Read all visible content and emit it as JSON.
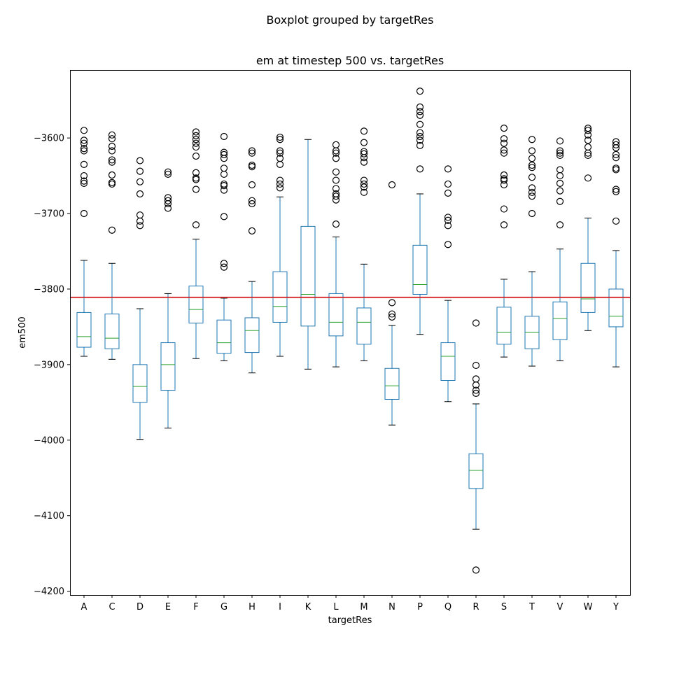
{
  "chart_data": {
    "type": "boxplot",
    "suptitle": "Boxplot grouped by targetRes",
    "title": "em at timestep 500 vs. targetRes",
    "xlabel": "targetRes",
    "ylabel": "em500",
    "ylim": [
      -4205,
      -3510
    ],
    "yticks": [
      -3600,
      -3700,
      -3800,
      -3900,
      -4000,
      -4100,
      -4200
    ],
    "ytick_labels": [
      "−3600",
      "−3700",
      "−3800",
      "−3900",
      "−4000",
      "−4100",
      "−4200"
    ],
    "reference_line": {
      "y": -3811,
      "color": "#d62728"
    },
    "box_color": "#1f77b4",
    "median_color": "#2ca02c",
    "grid": false,
    "categories": [
      "A",
      "C",
      "D",
      "E",
      "F",
      "G",
      "H",
      "I",
      "K",
      "L",
      "M",
      "N",
      "P",
      "Q",
      "R",
      "S",
      "T",
      "V",
      "W",
      "Y"
    ],
    "boxes": [
      {
        "label": "A",
        "whislo": -3889,
        "q1": -3877,
        "median": -3863,
        "q3": -3831,
        "whishi": -3762,
        "fliers": [
          -3590,
          -3603,
          -3607,
          -3614,
          -3617,
          -3635,
          -3650,
          -3657,
          -3660,
          -3700
        ]
      },
      {
        "label": "C",
        "whislo": -3893,
        "q1": -3879,
        "median": -3865,
        "q3": -3833,
        "whishi": -3766,
        "fliers": [
          -3596,
          -3601,
          -3611,
          -3617,
          -3629,
          -3632,
          -3649,
          -3659,
          -3661,
          -3722
        ]
      },
      {
        "label": "D",
        "whislo": -3999,
        "q1": -3950,
        "median": -3929,
        "q3": -3900,
        "whishi": -3826,
        "fliers": [
          -3630,
          -3644,
          -3658,
          -3674,
          -3702,
          -3710,
          -3716
        ]
      },
      {
        "label": "E",
        "whislo": -3984,
        "q1": -3934,
        "median": -3900,
        "q3": -3871,
        "whishi": -3806,
        "fliers": [
          -3645,
          -3648,
          -3679,
          -3683,
          -3687,
          -3693
        ]
      },
      {
        "label": "F",
        "whislo": -3892,
        "q1": -3845,
        "median": -3827,
        "q3": -3796,
        "whishi": -3734,
        "fliers": [
          -3592,
          -3597,
          -3602,
          -3607,
          -3612,
          -3624,
          -3646,
          -3653,
          -3655,
          -3668,
          -3715
        ]
      },
      {
        "label": "G",
        "whislo": -3895,
        "q1": -3885,
        "median": -3871,
        "q3": -3841,
        "whishi": -3812,
        "fliers": [
          -3598,
          -3619,
          -3622,
          -3627,
          -3640,
          -3648,
          -3661,
          -3663,
          -3669,
          -3704,
          -3766,
          -3771
        ]
      },
      {
        "label": "H",
        "whislo": -3911,
        "q1": -3884,
        "median": -3855,
        "q3": -3838,
        "whishi": -3790,
        "fliers": [
          -3617,
          -3620,
          -3636,
          -3638,
          -3662,
          -3683,
          -3687,
          -3723
        ]
      },
      {
        "label": "I",
        "whislo": -3889,
        "q1": -3844,
        "median": -3823,
        "q3": -3777,
        "whishi": -3678,
        "fliers": [
          -3599,
          -3602,
          -3617,
          -3620,
          -3627,
          -3635,
          -3656,
          -3661,
          -3666
        ]
      },
      {
        "label": "K",
        "whislo": -3906,
        "q1": -3849,
        "median": -3807,
        "q3": -3717,
        "whishi": -3602,
        "fliers": []
      },
      {
        "label": "L",
        "whislo": -3903,
        "q1": -3862,
        "median": -3844,
        "q3": -3806,
        "whishi": -3731,
        "fliers": [
          -3609,
          -3617,
          -3620,
          -3627,
          -3645,
          -3656,
          -3667,
          -3674,
          -3677,
          -3682,
          -3714
        ]
      },
      {
        "label": "M",
        "whislo": -3895,
        "q1": -3873,
        "median": -3844,
        "q3": -3825,
        "whishi": -3767,
        "fliers": [
          -3591,
          -3606,
          -3618,
          -3621,
          -3626,
          -3632,
          -3656,
          -3661,
          -3665,
          -3672
        ]
      },
      {
        "label": "N",
        "whislo": -3980,
        "q1": -3946,
        "median": -3928,
        "q3": -3905,
        "whishi": -3848,
        "fliers": [
          -3662,
          -3818,
          -3833,
          -3837
        ]
      },
      {
        "label": "P",
        "whislo": -3860,
        "q1": -3807,
        "median": -3794,
        "q3": -3742,
        "whishi": -3674,
        "fliers": [
          -3538,
          -3559,
          -3565,
          -3570,
          -3582,
          -3593,
          -3598,
          -3603,
          -3610,
          -3641
        ]
      },
      {
        "label": "Q",
        "whislo": -3949,
        "q1": -3921,
        "median": -3889,
        "q3": -3871,
        "whishi": -3815,
        "fliers": [
          -3641,
          -3661,
          -3673,
          -3705,
          -3709,
          -3716,
          -3741
        ]
      },
      {
        "label": "R",
        "whislo": -4118,
        "q1": -4064,
        "median": -4040,
        "q3": -4018,
        "whishi": -3952,
        "fliers": [
          -3845,
          -3901,
          -3919,
          -3927,
          -3934,
          -3938,
          -4172
        ]
      },
      {
        "label": "S",
        "whislo": -3890,
        "q1": -3873,
        "median": -3857,
        "q3": -3824,
        "whishi": -3787,
        "fliers": [
          -3587,
          -3601,
          -3607,
          -3616,
          -3620,
          -3649,
          -3654,
          -3656,
          -3662,
          -3694,
          -3715
        ]
      },
      {
        "label": "T",
        "whislo": -3902,
        "q1": -3879,
        "median": -3857,
        "q3": -3836,
        "whishi": -3777,
        "fliers": [
          -3602,
          -3617,
          -3627,
          -3636,
          -3639,
          -3652,
          -3666,
          -3672,
          -3677,
          -3700
        ]
      },
      {
        "label": "V",
        "whislo": -3895,
        "q1": -3867,
        "median": -3839,
        "q3": -3817,
        "whishi": -3747,
        "fliers": [
          -3604,
          -3617,
          -3620,
          -3623,
          -3642,
          -3650,
          -3660,
          -3670,
          -3684,
          -3715
        ]
      },
      {
        "label": "W",
        "whislo": -3855,
        "q1": -3831,
        "median": -3813,
        "q3": -3766,
        "whishi": -3706,
        "fliers": [
          -3587,
          -3590,
          -3596,
          -3603,
          -3612,
          -3620,
          -3623,
          -3653
        ]
      },
      {
        "label": "Y",
        "whislo": -3903,
        "q1": -3850,
        "median": -3836,
        "q3": -3800,
        "whishi": -3749,
        "fliers": [
          -3605,
          -3609,
          -3613,
          -3622,
          -3626,
          -3640,
          -3642,
          -3668,
          -3671,
          -3710
        ]
      }
    ]
  }
}
